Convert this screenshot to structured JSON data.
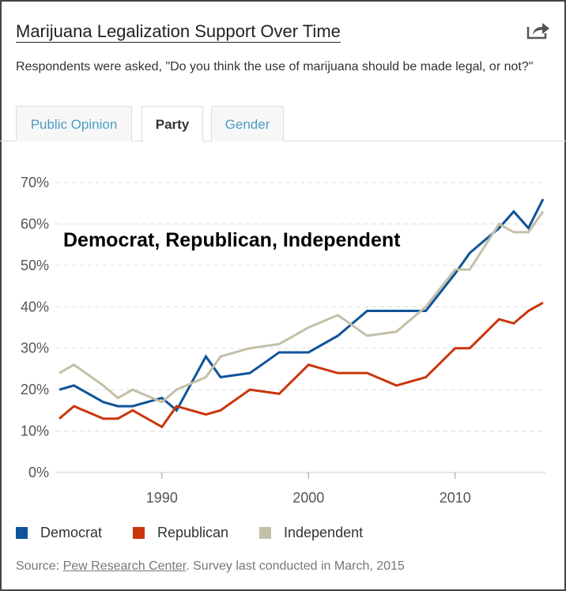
{
  "header": {
    "title": "Marijuana Legalization Support Over Time",
    "subtitle": "Respondents were asked, \"Do you think the use of marijuana should be made legal, or not?\"",
    "share_icon": "share-arrow-icon"
  },
  "tabs": [
    {
      "label": "Public Opinion"
    },
    {
      "label": "Party"
    },
    {
      "label": "Gender"
    }
  ],
  "source": {
    "prefix": "Source: ",
    "link": "Pew Research Center",
    "suffix": ". Survey last conducted in March, 2015"
  },
  "chart_data": {
    "type": "line",
    "title": "Democrat, Republican, Independent",
    "x": [
      1983,
      1984,
      1986,
      1987,
      1988,
      1990,
      1991,
      1993,
      1994,
      1996,
      1998,
      2000,
      2002,
      2004,
      2006,
      2008,
      2010,
      2011,
      2013,
      2014,
      2015,
      2016
    ],
    "series": [
      {
        "name": "Democrat",
        "color": "#0f5499",
        "values": [
          20,
          21,
          17,
          16,
          16,
          18,
          15,
          28,
          23,
          24,
          29,
          29,
          33,
          39,
          39,
          39,
          48,
          53,
          59,
          63,
          59,
          66
        ]
      },
      {
        "name": "Republican",
        "color": "#c9360b",
        "values": [
          13,
          16,
          13,
          13,
          15,
          11,
          16,
          14,
          15,
          20,
          19,
          26,
          24,
          24,
          21,
          23,
          30,
          30,
          37,
          36,
          39,
          41
        ]
      },
      {
        "name": "Independent",
        "color": "#c4bfa8",
        "values": [
          24,
          26,
          21,
          18,
          20,
          17,
          20,
          23,
          28,
          30,
          31,
          35,
          38,
          33,
          34,
          40,
          49,
          49,
          60,
          58,
          58,
          63
        ]
      }
    ],
    "xlim": [
      1983,
      2016
    ],
    "ylim": [
      0,
      70
    ],
    "yticks": [
      "0%",
      "10%",
      "20%",
      "30%",
      "40%",
      "50%",
      "60%",
      "70%"
    ],
    "xticks": [
      {
        "value": 1990,
        "label": "1990"
      },
      {
        "value": 2000,
        "label": "2000"
      },
      {
        "value": 2010,
        "label": "2010"
      }
    ],
    "grid": true,
    "legend": "bottom-left"
  }
}
